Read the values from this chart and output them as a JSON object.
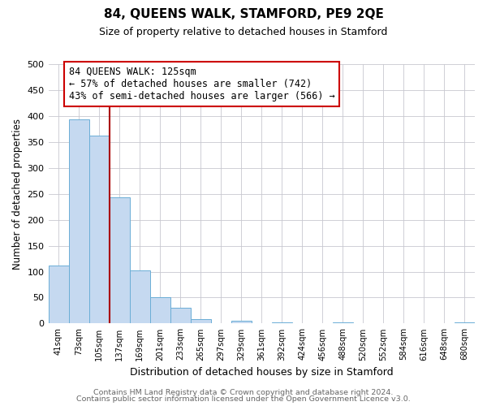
{
  "title": "84, QUEENS WALK, STAMFORD, PE9 2QE",
  "subtitle": "Size of property relative to detached houses in Stamford",
  "xlabel": "Distribution of detached houses by size in Stamford",
  "ylabel": "Number of detached properties",
  "bar_labels": [
    "41sqm",
    "73sqm",
    "105sqm",
    "137sqm",
    "169sqm",
    "201sqm",
    "233sqm",
    "265sqm",
    "297sqm",
    "329sqm",
    "361sqm",
    "392sqm",
    "424sqm",
    "456sqm",
    "488sqm",
    "520sqm",
    "552sqm",
    "584sqm",
    "616sqm",
    "648sqm",
    "680sqm"
  ],
  "bar_values": [
    112,
    394,
    362,
    243,
    103,
    50,
    30,
    8,
    0,
    6,
    0,
    2,
    0,
    0,
    2,
    0,
    0,
    0,
    0,
    0,
    2
  ],
  "bar_color": "#c5d9f0",
  "bar_edge_color": "#6baed6",
  "vline_color": "#aa0000",
  "annotation_title": "84 QUEENS WALK: 125sqm",
  "annotation_line1": "← 57% of detached houses are smaller (742)",
  "annotation_line2": "43% of semi-detached houses are larger (566) →",
  "annotation_box_edge": "#cc0000",
  "ylim": [
    0,
    500
  ],
  "yticks": [
    0,
    50,
    100,
    150,
    200,
    250,
    300,
    350,
    400,
    450,
    500
  ],
  "footer_line1": "Contains HM Land Registry data © Crown copyright and database right 2024.",
  "footer_line2": "Contains public sector information licensed under the Open Government Licence v3.0.",
  "background_color": "#ffffff",
  "grid_color": "#c8c8d0"
}
